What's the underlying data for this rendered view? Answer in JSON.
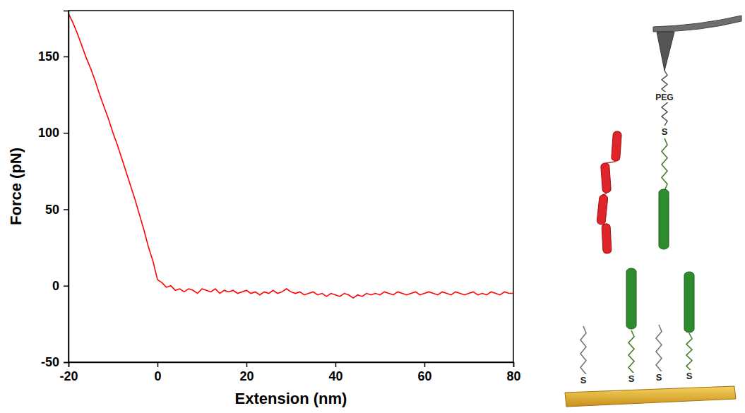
{
  "chart_data": {
    "type": "line",
    "x_label": "Extension (nm)",
    "y_label": "Force (pN)",
    "x": [
      -20,
      -19,
      -18,
      -17,
      -16,
      -15,
      -14,
      -13,
      -12,
      -11,
      -10,
      -9,
      -8,
      -7,
      -6,
      -5,
      -4,
      -3,
      -2,
      -1,
      0,
      1,
      2,
      3,
      4,
      5,
      6,
      7,
      8,
      9,
      10,
      11,
      12,
      13,
      14,
      15,
      16,
      17,
      18,
      19,
      20,
      21,
      22,
      23,
      24,
      25,
      26,
      27,
      28,
      29,
      30,
      31,
      32,
      33,
      34,
      35,
      36,
      37,
      38,
      39,
      40,
      41,
      42,
      43,
      44,
      45,
      46,
      47,
      48,
      49,
      50,
      51,
      52,
      53,
      54,
      55,
      56,
      57,
      58,
      59,
      60,
      61,
      62,
      63,
      64,
      65,
      66,
      67,
      68,
      69,
      70,
      71,
      72,
      73,
      74,
      75,
      76,
      77,
      78,
      79,
      80
    ],
    "values": [
      178,
      172,
      165,
      157,
      149,
      142,
      134,
      125,
      117,
      109,
      100,
      92,
      83,
      74,
      65,
      56,
      46,
      36,
      25,
      16,
      4,
      2,
      -1,
      0,
      -3,
      -2,
      -4,
      -2,
      -3,
      -5,
      -2,
      -3,
      -4,
      -2,
      -5,
      -3,
      -4,
      -3,
      -5,
      -4,
      -3,
      -5,
      -4,
      -6,
      -4,
      -5,
      -3,
      -5,
      -4,
      -2,
      -4,
      -5,
      -4,
      -6,
      -5,
      -4,
      -6,
      -5,
      -7,
      -5,
      -6,
      -7,
      -5,
      -6,
      -8,
      -6,
      -7,
      -5,
      -6,
      -5,
      -6,
      -4,
      -5,
      -6,
      -4,
      -5,
      -6,
      -5,
      -4,
      -6,
      -5,
      -4,
      -5,
      -6,
      -4,
      -5,
      -6,
      -4,
      -5,
      -6,
      -5,
      -4,
      -6,
      -5,
      -6,
      -4,
      -5,
      -6,
      -4,
      -5,
      -5
    ],
    "color": "#ff0000",
    "xlim": [
      -20,
      80
    ],
    "xticks": [
      -20,
      0,
      20,
      40,
      60,
      80
    ],
    "ylim": [
      -50,
      180
    ],
    "yticks": [
      -50,
      0,
      50,
      100,
      150
    ],
    "grid": false
  },
  "diagram": {
    "linker_label": "PEG",
    "sulfur_labels": [
      "S",
      "S",
      "S",
      "S",
      "S"
    ]
  }
}
